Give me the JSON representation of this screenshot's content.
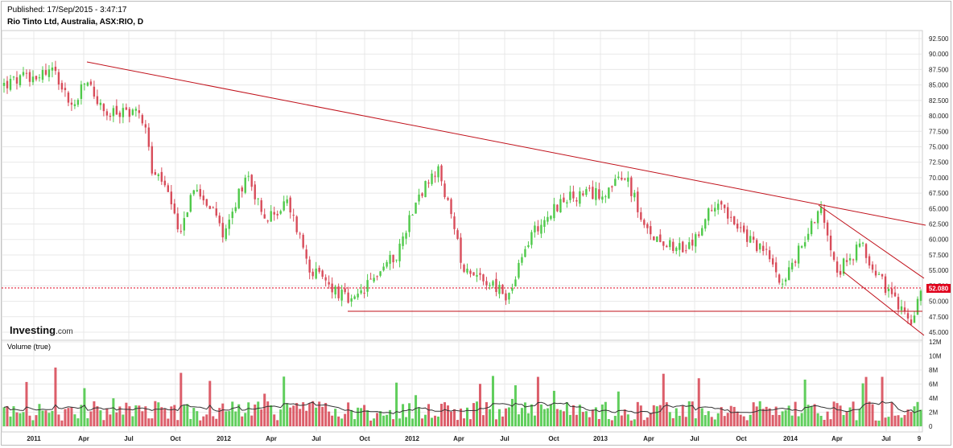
{
  "header": {
    "published": "Published: 17/Sep/2015 - 3:47:17",
    "symbol": "Rio Tinto Ltd, Australia, ASX:RIO, D"
  },
  "logo": {
    "brand": "Investing",
    "suffix": ".com"
  },
  "volume_panel": {
    "label": "Volume (true)"
  },
  "last_price_label": "52.080",
  "colors": {
    "up": "#4fc94a",
    "down": "#d84c5a",
    "trend": "#c0101a",
    "last": "#e0001c",
    "grid": "#e8e8e8",
    "ma": "#333333"
  },
  "chart_data": [
    {
      "type": "candlestick",
      "title": "Rio Tinto Ltd, Australia, ASX:RIO, D",
      "y_ticks": [
        "92.500",
        "90.000",
        "87.500",
        "85.000",
        "82.500",
        "80.000",
        "77.500",
        "75.000",
        "72.500",
        "70.000",
        "67.500",
        "65.000",
        "62.500",
        "60.000",
        "57.500",
        "55.000",
        "52.500",
        "50.000",
        "47.500",
        "45.000"
      ],
      "ylim": [
        45,
        92.5
      ],
      "x_ticks": [
        "2011",
        "Apr",
        "Jul",
        "Oct",
        "2012",
        "Apr",
        "Jul",
        "Oct",
        "2012",
        "Apr",
        "Jul",
        "Oct",
        "2013",
        "Apr",
        "Jul",
        "Oct",
        "2014",
        "Apr",
        "Jul",
        "9"
      ],
      "last_price": 52.08,
      "price_path": [
        {
          "t": 0.0,
          "v": 85.0
        },
        {
          "t": 0.03,
          "v": 86.5
        },
        {
          "t": 0.055,
          "v": 87.5
        },
        {
          "t": 0.075,
          "v": 81.0
        },
        {
          "t": 0.09,
          "v": 86.0
        },
        {
          "t": 0.11,
          "v": 80.0
        },
        {
          "t": 0.14,
          "v": 81.0
        },
        {
          "t": 0.155,
          "v": 79.0
        },
        {
          "t": 0.16,
          "v": 71.0
        },
        {
          "t": 0.175,
          "v": 69.0
        },
        {
          "t": 0.19,
          "v": 61.0
        },
        {
          "t": 0.21,
          "v": 69.0
        },
        {
          "t": 0.24,
          "v": 61.0
        },
        {
          "t": 0.265,
          "v": 71.0
        },
        {
          "t": 0.285,
          "v": 63.0
        },
        {
          "t": 0.31,
          "v": 66.0
        },
        {
          "t": 0.335,
          "v": 55.0
        },
        {
          "t": 0.36,
          "v": 52.0
        },
        {
          "t": 0.38,
          "v": 49.5
        },
        {
          "t": 0.41,
          "v": 55.0
        },
        {
          "t": 0.43,
          "v": 58.0
        },
        {
          "t": 0.45,
          "v": 67.0
        },
        {
          "t": 0.475,
          "v": 71.0
        },
        {
          "t": 0.5,
          "v": 56.0
        },
        {
          "t": 0.53,
          "v": 53.0
        },
        {
          "t": 0.55,
          "v": 50.5
        },
        {
          "t": 0.575,
          "v": 61.0
        },
        {
          "t": 0.61,
          "v": 66.5
        },
        {
          "t": 0.65,
          "v": 67.5
        },
        {
          "t": 0.68,
          "v": 70.0
        },
        {
          "t": 0.7,
          "v": 61.0
        },
        {
          "t": 0.72,
          "v": 60.0
        },
        {
          "t": 0.745,
          "v": 58.0
        },
        {
          "t": 0.78,
          "v": 67.0
        },
        {
          "t": 0.8,
          "v": 61.5
        },
        {
          "t": 0.83,
          "v": 58.0
        },
        {
          "t": 0.85,
          "v": 53.0
        },
        {
          "t": 0.87,
          "v": 59.0
        },
        {
          "t": 0.89,
          "v": 65.5
        },
        {
          "t": 0.91,
          "v": 55.0
        },
        {
          "t": 0.935,
          "v": 59.0
        },
        {
          "t": 0.955,
          "v": 54.0
        },
        {
          "t": 0.975,
          "v": 49.0
        },
        {
          "t": 0.99,
          "v": 47.0
        },
        {
          "t": 1.0,
          "v": 52.0
        }
      ]
    },
    {
      "type": "bar",
      "title": "Volume (true)",
      "y_ticks": [
        "12M",
        "10M",
        "8M",
        "6M",
        "4M",
        "2M",
        "0"
      ],
      "ylim": [
        0,
        12
      ]
    }
  ]
}
